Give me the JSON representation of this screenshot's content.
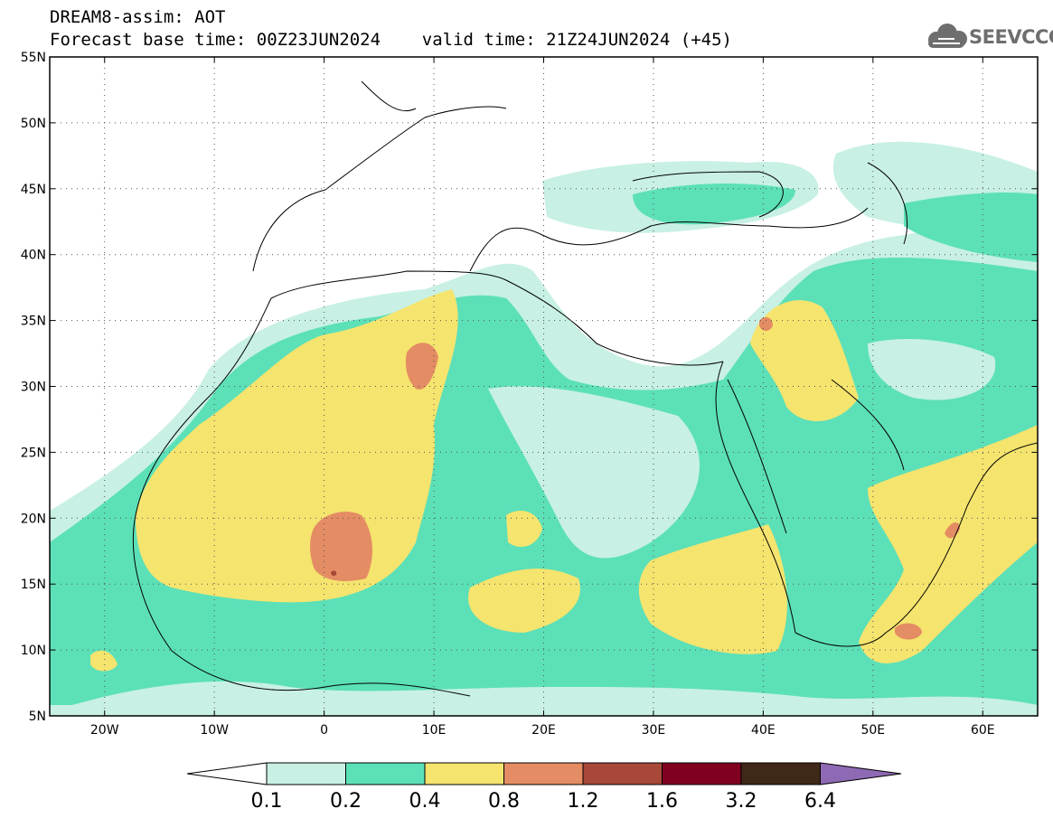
{
  "header": {
    "line1": "DREAM8-assim: AOT",
    "line2": "Forecast base time: 00Z23JUN2024    valid time: 21Z24JUN2024 (+45)",
    "logo_text": "SEEVCCC"
  },
  "map": {
    "lon_range": [
      -25,
      65
    ],
    "lat_range": [
      5,
      55
    ],
    "lat_ticks": [
      {
        "value": 55,
        "label": "55N"
      },
      {
        "value": 50,
        "label": "50N"
      },
      {
        "value": 45,
        "label": "45N"
      },
      {
        "value": 40,
        "label": "40N"
      },
      {
        "value": 35,
        "label": "35N"
      },
      {
        "value": 30,
        "label": "30N"
      },
      {
        "value": 25,
        "label": "25N"
      },
      {
        "value": 20,
        "label": "20N"
      },
      {
        "value": 15,
        "label": "15N"
      },
      {
        "value": 10,
        "label": "10N"
      },
      {
        "value": 5,
        "label": "5N"
      }
    ],
    "lon_ticks": [
      {
        "value": -20,
        "label": "20W"
      },
      {
        "value": -10,
        "label": "10W"
      },
      {
        "value": 0,
        "label": "0"
      },
      {
        "value": 10,
        "label": "10E"
      },
      {
        "value": 20,
        "label": "20E"
      },
      {
        "value": 30,
        "label": "30E"
      },
      {
        "value": 40,
        "label": "40E"
      },
      {
        "value": 50,
        "label": "50E"
      },
      {
        "value": 60,
        "label": "60E"
      }
    ]
  },
  "colorbar": {
    "labels": [
      "0.1",
      "0.2",
      "0.4",
      "0.8",
      "1.2",
      "1.6",
      "3.2",
      "6.4"
    ],
    "colors": [
      "#ffffff",
      "#c8f0e4",
      "#5ce0b8",
      "#f5e46e",
      "#e48c64",
      "#a84838",
      "#800020",
      "#402818",
      "#8e6ab4"
    ]
  }
}
